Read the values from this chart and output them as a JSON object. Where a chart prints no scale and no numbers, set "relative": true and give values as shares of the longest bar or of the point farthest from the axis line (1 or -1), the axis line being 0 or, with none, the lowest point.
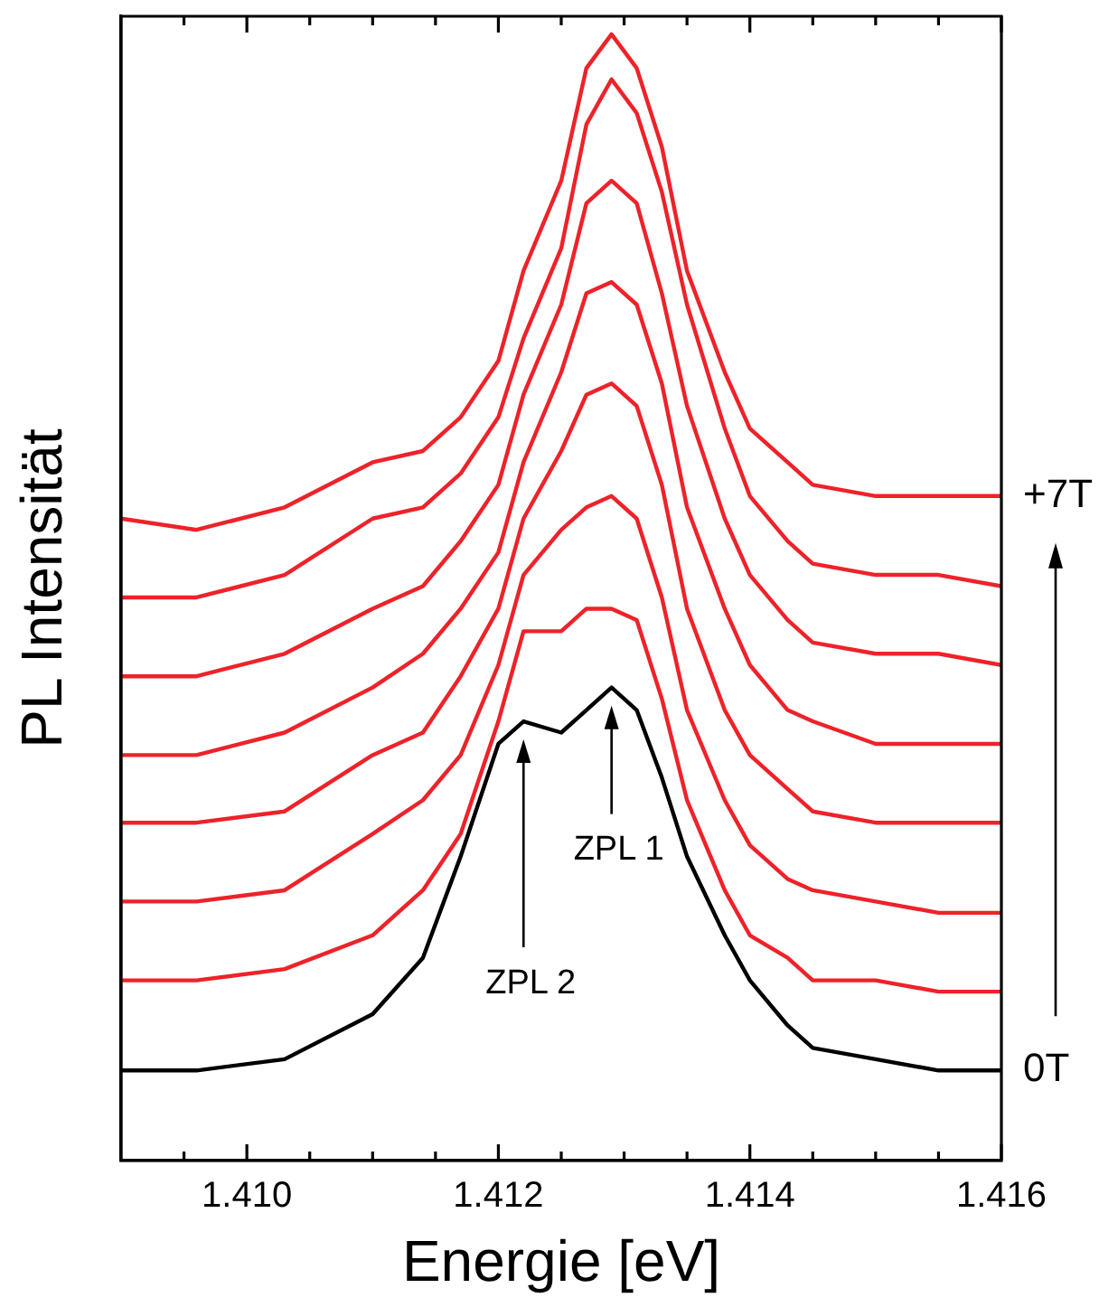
{
  "chart_data": {
    "type": "line",
    "relative": true,
    "xlabel": "Energie [eV]",
    "ylabel": "PL Intensität",
    "xlim": [
      1.409,
      1.416
    ],
    "xticks": [
      {
        "value": 1.4095,
        "label": null
      },
      {
        "value": 1.41,
        "label": "1.410"
      },
      {
        "value": 1.4105,
        "label": null
      },
      {
        "value": 1.411,
        "label": null
      },
      {
        "value": 1.4115,
        "label": null
      },
      {
        "value": 1.412,
        "label": "1.412"
      },
      {
        "value": 1.4125,
        "label": null
      },
      {
        "value": 1.413,
        "label": null
      },
      {
        "value": 1.4135,
        "label": null
      },
      {
        "value": 1.414,
        "label": "1.414"
      },
      {
        "value": 1.4145,
        "label": null
      },
      {
        "value": 1.415,
        "label": null
      },
      {
        "value": 1.4155,
        "label": null
      },
      {
        "value": 1.416,
        "label": "1.416"
      }
    ],
    "x": [
      1.409,
      1.4096,
      1.4103,
      1.411,
      1.4114,
      1.4117,
      1.412,
      1.4122,
      1.4125,
      1.4127,
      1.4129,
      1.4131,
      1.4133,
      1.4135,
      1.4138,
      1.414,
      1.4143,
      1.4145,
      1.415,
      1.4155,
      1.416
    ],
    "series": [
      {
        "name": "0T",
        "color": "#000000",
        "values": [
          0.08,
          0.08,
          0.09,
          0.13,
          0.18,
          0.27,
          0.37,
          0.39,
          0.38,
          0.4,
          0.42,
          0.4,
          0.34,
          0.27,
          0.2,
          0.16,
          0.12,
          0.1,
          0.09,
          0.08,
          0.08
        ]
      },
      {
        "color": "#ee2229",
        "values": [
          0.16,
          0.16,
          0.17,
          0.2,
          0.24,
          0.29,
          0.39,
          0.47,
          0.47,
          0.49,
          0.49,
          0.48,
          0.41,
          0.32,
          0.24,
          0.2,
          0.18,
          0.16,
          0.16,
          0.15,
          0.15
        ]
      },
      {
        "color": "#ee2229",
        "values": [
          0.23,
          0.23,
          0.24,
          0.29,
          0.32,
          0.36,
          0.44,
          0.52,
          0.56,
          0.58,
          0.59,
          0.57,
          0.5,
          0.4,
          0.32,
          0.28,
          0.25,
          0.24,
          0.23,
          0.22,
          0.22
        ]
      },
      {
        "color": "#ee2229",
        "values": [
          0.3,
          0.3,
          0.31,
          0.36,
          0.38,
          0.43,
          0.49,
          0.57,
          0.63,
          0.68,
          0.69,
          0.67,
          0.6,
          0.49,
          0.4,
          0.36,
          0.33,
          0.31,
          0.3,
          0.3,
          0.3
        ]
      },
      {
        "color": "#ee2229",
        "values": [
          0.36,
          0.36,
          0.38,
          0.42,
          0.45,
          0.49,
          0.54,
          0.62,
          0.7,
          0.77,
          0.78,
          0.76,
          0.69,
          0.58,
          0.49,
          0.44,
          0.4,
          0.39,
          0.37,
          0.37,
          0.37
        ]
      },
      {
        "color": "#ee2229",
        "values": [
          0.43,
          0.43,
          0.45,
          0.49,
          0.51,
          0.55,
          0.6,
          0.68,
          0.76,
          0.85,
          0.87,
          0.85,
          0.77,
          0.67,
          0.57,
          0.52,
          0.48,
          0.46,
          0.45,
          0.45,
          0.44
        ]
      },
      {
        "color": "#ee2229",
        "values": [
          0.5,
          0.5,
          0.52,
          0.57,
          0.58,
          0.61,
          0.66,
          0.73,
          0.81,
          0.92,
          0.96,
          0.93,
          0.86,
          0.76,
          0.65,
          0.59,
          0.55,
          0.53,
          0.52,
          0.52,
          0.51
        ]
      },
      {
        "name": "+7T",
        "color": "#ee2229",
        "values": [
          0.57,
          0.56,
          0.58,
          0.62,
          0.63,
          0.66,
          0.71,
          0.79,
          0.87,
          0.97,
          1.0,
          0.97,
          0.9,
          0.79,
          0.7,
          0.65,
          0.62,
          0.6,
          0.59,
          0.59,
          0.59
        ]
      }
    ],
    "annotations": [
      "ZPL 1",
      "ZPL 2"
    ],
    "grid": false,
    "legend": false,
    "marker": "none",
    "line_style": "solid"
  }
}
